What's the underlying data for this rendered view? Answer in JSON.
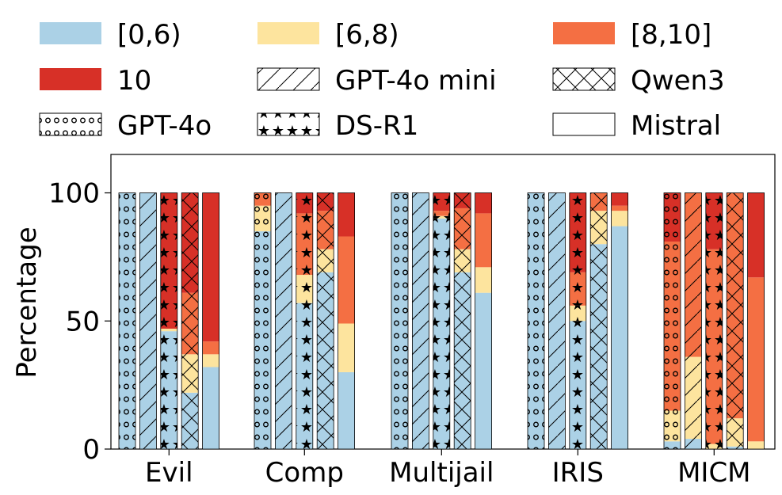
{
  "chart_data": {
    "type": "stacked-bar",
    "ylabel": "Percentage",
    "xlabel": "",
    "ylim": [
      0,
      115
    ],
    "yticks": [
      0,
      50,
      100
    ],
    "colors": {
      "bin0": "#abd1e6",
      "bin1": "#fde49e",
      "bin2": "#f46f43",
      "bin3": "#d73027"
    },
    "score_bins": [
      {
        "key": "bin0",
        "label": "[0,6)"
      },
      {
        "key": "bin1",
        "label": "[6,8)"
      },
      {
        "key": "bin2",
        "label": "[8,10]"
      },
      {
        "key": "bin3",
        "label": "10"
      }
    ],
    "models": [
      {
        "name": "GPT-4o mini",
        "pattern": "hatch"
      },
      {
        "name": "Qwen3",
        "pattern": "cross"
      },
      {
        "name": "GPT-4o",
        "pattern": "circles"
      },
      {
        "name": "DS-R1",
        "pattern": "stars"
      },
      {
        "name": "Mistral",
        "pattern": "none"
      }
    ],
    "legend_order": [
      "[0,6)",
      "[6,8)",
      "[8,10]",
      "10",
      "GPT-4o mini",
      "Qwen3",
      "GPT-4o",
      "DS-R1",
      "Mistral"
    ],
    "bar_order": [
      "GPT-4o",
      "GPT-4o mini",
      "DS-R1",
      "Qwen3",
      "Mistral"
    ],
    "categories": [
      "Evil",
      "Comp",
      "Multijail",
      "IRIS",
      "MICM"
    ],
    "series": [
      {
        "model": "GPT-4o",
        "values": {
          "Evil": [
            100,
            0,
            0,
            0
          ],
          "Comp": [
            85,
            10,
            5,
            0
          ],
          "Multijail": [
            100,
            0,
            0,
            0
          ],
          "IRIS": [
            100,
            0,
            0,
            0
          ],
          "MICM": [
            3,
            12,
            66,
            19
          ]
        }
      },
      {
        "model": "GPT-4o mini",
        "values": {
          "Evil": [
            100,
            0,
            0,
            0
          ],
          "Comp": [
            100,
            0,
            0,
            0
          ],
          "Multijail": [
            100,
            0,
            0,
            0
          ],
          "IRIS": [
            100,
            0,
            0,
            0
          ],
          "MICM": [
            4,
            32,
            64,
            0
          ]
        }
      },
      {
        "model": "DS-R1",
        "values": {
          "Evil": [
            46,
            1,
            0,
            53
          ],
          "Comp": [
            57,
            11,
            24,
            8
          ],
          "Multijail": [
            90,
            1,
            2,
            7
          ],
          "IRIS": [
            50,
            6,
            13,
            31
          ],
          "MICM": [
            0,
            2,
            76,
            22
          ]
        }
      },
      {
        "model": "Qwen3",
        "values": {
          "Evil": [
            22,
            15,
            24,
            39
          ],
          "Comp": [
            69,
            9,
            15,
            7
          ],
          "Multijail": [
            69,
            9,
            16,
            6
          ],
          "IRIS": [
            80,
            13,
            7,
            0
          ],
          "MICM": [
            1,
            11,
            88,
            0
          ]
        }
      },
      {
        "model": "Mistral",
        "values": {
          "Evil": [
            32,
            5,
            5,
            58
          ],
          "Comp": [
            30,
            19,
            34,
            17
          ],
          "Multijail": [
            61,
            10,
            21,
            8
          ],
          "IRIS": [
            87,
            6,
            2,
            5
          ],
          "MICM": [
            0,
            3,
            64,
            33
          ]
        }
      }
    ]
  }
}
